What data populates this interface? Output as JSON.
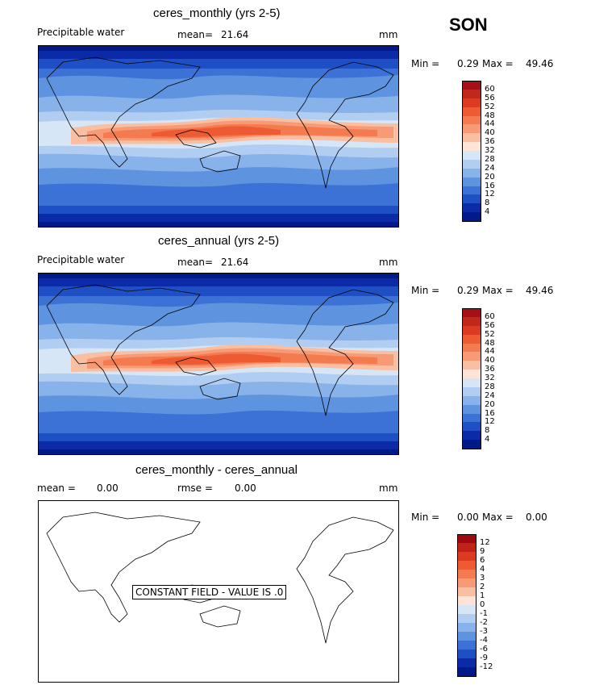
{
  "season": "SON",
  "panels": [
    {
      "title": "ceres_monthly (yrs 2-5)",
      "variable": "Precipitable water",
      "mean_label": "mean=",
      "mean_value": "21.64",
      "units": "mm",
      "min_label": "Min =",
      "min_value": "0.29",
      "max_label": "Max =",
      "max_value": "49.46",
      "colorbar": [
        "60",
        "56",
        "52",
        "48",
        "44",
        "40",
        "36",
        "32",
        "28",
        "24",
        "20",
        "16",
        "12",
        "8",
        "4"
      ]
    },
    {
      "title": "ceres_annual (yrs 2-5)",
      "variable": "Precipitable water",
      "mean_label": "mean=",
      "mean_value": "21.64",
      "units": "mm",
      "min_label": "Min =",
      "min_value": "0.29",
      "max_label": "Max =",
      "max_value": "49.46",
      "colorbar": [
        "60",
        "56",
        "52",
        "48",
        "44",
        "40",
        "36",
        "32",
        "28",
        "24",
        "20",
        "16",
        "12",
        "8",
        "4"
      ]
    },
    {
      "title": "ceres_monthly - ceres_annual",
      "mean_label": "mean =",
      "mean_value": "0.00",
      "rmse_label": "rmse =",
      "rmse_value": "0.00",
      "units": "mm",
      "min_label": "Min =",
      "min_value": "0.00",
      "max_label": "Max =",
      "max_value": "0.00",
      "constant_note": "CONSTANT FIELD - VALUE IS .0",
      "colorbar": [
        "12",
        "9",
        "6",
        "4",
        "3",
        "2",
        "1",
        "0",
        "-1",
        "-2",
        "-3",
        "-4",
        "-6",
        "-9",
        "-12"
      ]
    }
  ],
  "colors": {
    "abs_scale": [
      "#a50f15",
      "#c0281b",
      "#dc3b22",
      "#ee5a32",
      "#f47a50",
      "#f69b76",
      "#f9bfa2",
      "#fde4d6",
      "#d7e6f7",
      "#b1cdf1",
      "#88b2ea",
      "#5e93e0",
      "#3c71d6",
      "#1f4fc4",
      "#0a2aa8",
      "#001a8a"
    ],
    "diff_scale": [
      "#9c0a0e",
      "#c0221a",
      "#dc3b22",
      "#ee5a32",
      "#f47a50",
      "#f69b76",
      "#f9bfa2",
      "#fde4d6",
      "#d7e6f7",
      "#b1cdf1",
      "#88b2ea",
      "#5e93e0",
      "#3c71d6",
      "#1f4fc4",
      "#0a2aa8",
      "#001a8a"
    ]
  }
}
